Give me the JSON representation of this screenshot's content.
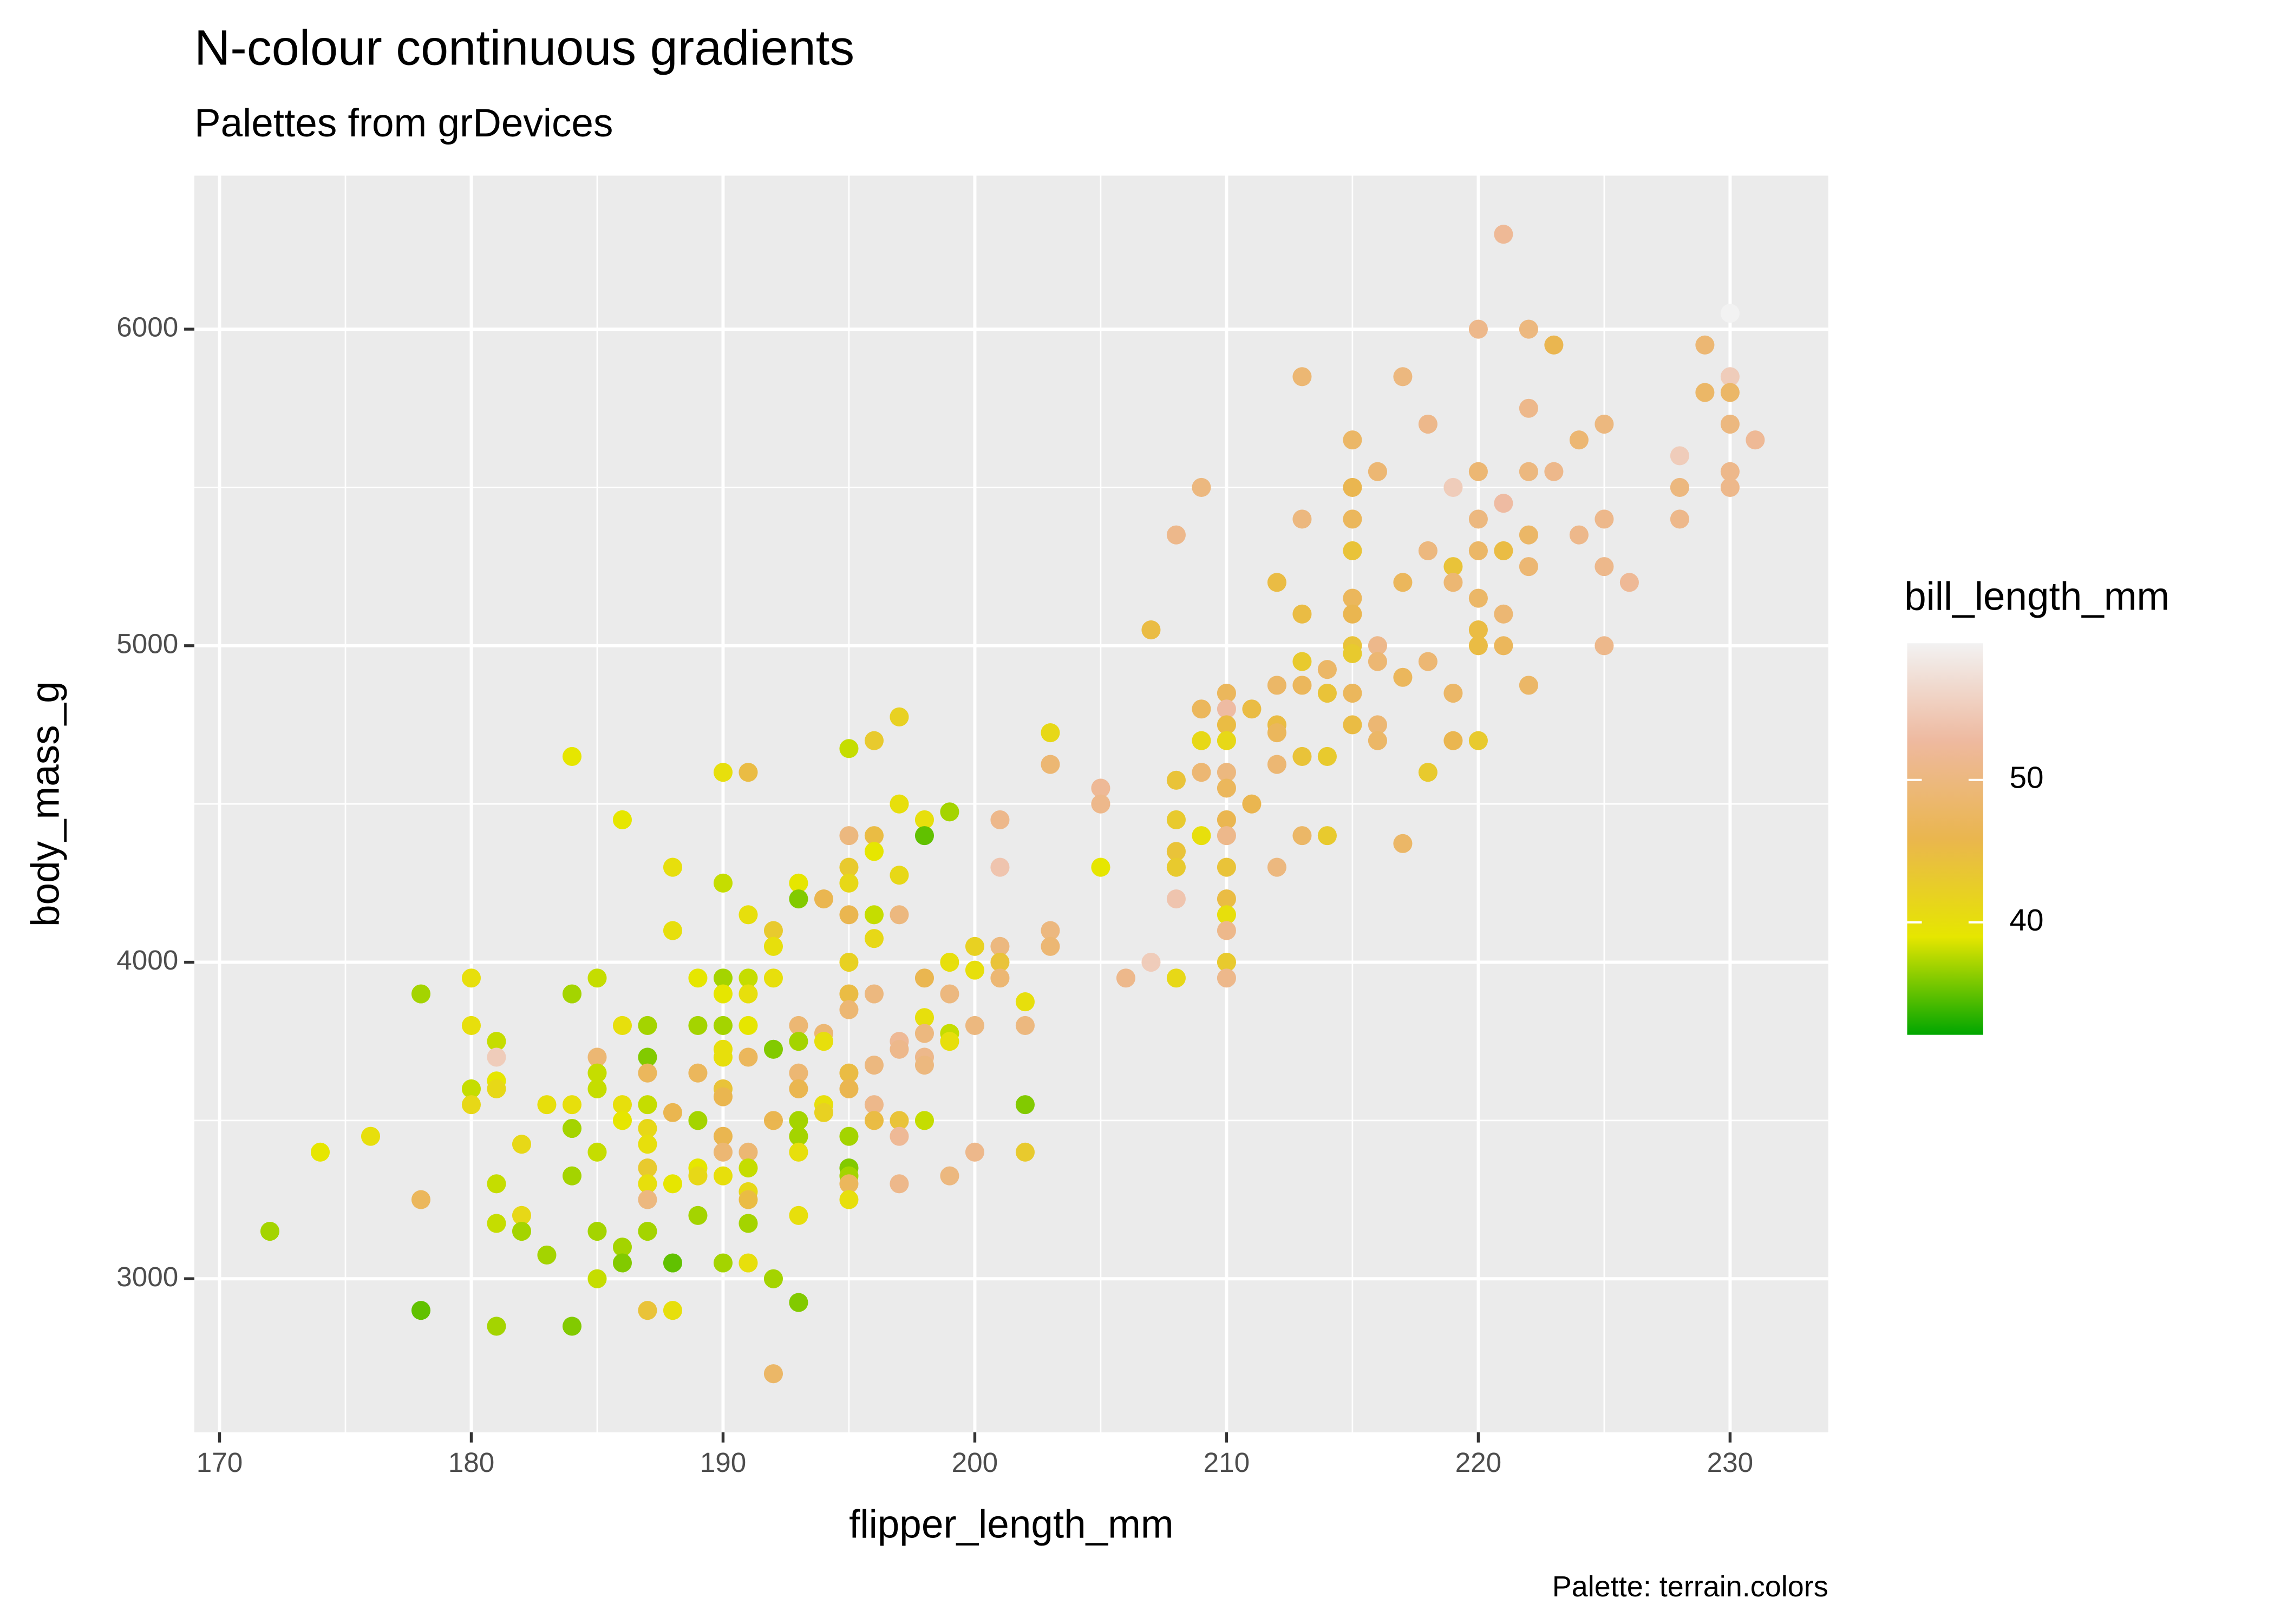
{
  "chart_data": {
    "type": "scatter",
    "title": "N-colour continuous gradients",
    "subtitle": "Palettes from grDevices",
    "caption": "Palette: terrain.colors",
    "xlabel": "flipper_length_mm",
    "ylabel": "body_mass_g",
    "legend_title": "bill_length_mm",
    "xlim": [
      169.0,
      233.9
    ],
    "ylim": [
      2515,
      6485
    ],
    "xticks": [
      170,
      180,
      190,
      200,
      210,
      220,
      230
    ],
    "yticks": [
      3000,
      4000,
      5000,
      6000
    ],
    "xminor": [
      175,
      185,
      195,
      205,
      215,
      225
    ],
    "yminor": [
      3500,
      4500,
      5500
    ],
    "grid": true,
    "clim": [
      32.1,
      59.6
    ],
    "cticks": [
      40,
      50
    ],
    "palette": [
      "#00A600",
      "#E6E600",
      "#EAB64E",
      "#EEB99F",
      "#F2F2F2"
    ],
    "x": [
      172,
      174,
      176,
      178,
      178,
      178,
      180,
      180,
      180,
      180,
      181,
      181,
      181,
      181,
      181,
      181,
      181,
      182,
      182,
      182,
      183,
      183,
      184,
      184,
      184,
      184,
      184,
      184,
      185,
      185,
      185,
      185,
      185,
      185,
      185,
      186,
      186,
      186,
      186,
      186,
      186,
      187,
      187,
      187,
      187,
      187,
      187,
      187,
      187,
      187,
      187,
      187,
      188,
      188,
      188,
      188,
      188,
      188,
      189,
      189,
      189,
      189,
      189,
      189,
      189,
      190,
      190,
      190,
      190,
      190,
      190,
      190,
      190,
      190,
      190,
      190,
      190,
      190,
      191,
      191,
      191,
      191,
      191,
      191,
      191,
      191,
      191,
      191,
      191,
      191,
      192,
      192,
      192,
      192,
      192,
      192,
      192,
      193,
      193,
      193,
      193,
      193,
      193,
      193,
      193,
      193,
      193,
      193,
      194,
      194,
      194,
      194,
      194,
      195,
      195,
      195,
      195,
      195,
      195,
      195,
      195,
      195,
      195,
      195,
      195,
      195,
      195,
      195,
      196,
      196,
      196,
      196,
      196,
      196,
      196,
      196,
      196,
      197,
      197,
      197,
      197,
      197,
      197,
      197,
      197,
      197,
      198,
      198,
      198,
      198,
      198,
      198,
      198,
      198,
      199,
      199,
      199,
      199,
      199,
      199,
      200,
      200,
      200,
      200,
      201,
      201,
      201,
      201,
      201,
      202,
      202,
      202,
      202,
      203,
      203,
      203,
      203,
      205,
      205,
      205,
      206,
      207,
      207,
      208,
      208,
      208,
      208,
      208,
      208,
      208,
      209,
      209,
      209,
      209,
      209,
      210,
      210,
      210,
      210,
      210,
      210,
      210,
      210,
      210,
      210,
      210,
      210,
      210,
      210,
      211,
      211,
      212,
      212,
      212,
      212,
      212,
      212,
      213,
      213,
      213,
      213,
      213,
      213,
      213,
      214,
      214,
      214,
      214,
      215,
      215,
      215,
      215,
      215,
      215,
      215,
      215,
      215,
      215,
      216,
      216,
      216,
      216,
      216,
      217,
      217,
      217,
      217,
      218,
      218,
      218,
      218,
      219,
      219,
      219,
      219,
      219,
      220,
      220,
      220,
      220,
      220,
      220,
      220,
      220,
      221,
      221,
      221,
      221,
      221,
      222,
      222,
      222,
      222,
      222,
      222,
      223,
      223,
      224,
      224,
      225,
      225,
      225,
      225,
      226,
      228,
      228,
      228,
      229,
      229,
      230,
      230,
      230,
      230,
      230,
      230,
      231
    ],
    "values": [
      3150,
      3400,
      3450,
      3900,
      3250,
      2900,
      3950,
      3800,
      3600,
      3550,
      3750,
      3700,
      3625,
      3600,
      3300,
      3175,
      2850,
      3425,
      3200,
      3150,
      3550,
      3075,
      4650,
      3900,
      3550,
      3475,
      3325,
      2850,
      3950,
      3700,
      3650,
      3600,
      3400,
      3150,
      3000,
      4450,
      3800,
      3550,
      3500,
      3100,
      3050,
      3800,
      3700,
      3650,
      3550,
      3475,
      3425,
      3350,
      3300,
      3250,
      3150,
      2900,
      4300,
      4100,
      3525,
      3300,
      3050,
      2900,
      3950,
      3800,
      3650,
      3500,
      3350,
      3325,
      3200,
      4600,
      4250,
      3950,
      3900,
      3800,
      3725,
      3700,
      3600,
      3575,
      3450,
      3400,
      3325,
      3050,
      4600,
      4150,
      3950,
      3900,
      3800,
      3700,
      3400,
      3350,
      3275,
      3250,
      3175,
      3050,
      4100,
      4050,
      3950,
      3725,
      3500,
      3000,
      2700,
      4250,
      4200,
      3800,
      3750,
      3650,
      3600,
      3500,
      3450,
      3400,
      3200,
      2925,
      4200,
      3775,
      3750,
      3550,
      3525,
      4675,
      4400,
      4300,
      4250,
      4150,
      4000,
      3900,
      3850,
      3650,
      3600,
      3450,
      3350,
      3325,
      3300,
      3250,
      4700,
      4400,
      4350,
      4150,
      4075,
      3900,
      3675,
      3550,
      3500,
      4775,
      4500,
      4275,
      4150,
      3750,
      3725,
      3500,
      3450,
      3300,
      4450,
      4400,
      3950,
      3825,
      3775,
      3700,
      3675,
      3500,
      4475,
      4000,
      3900,
      3775,
      3750,
      3325,
      4050,
      3975,
      3800,
      3400,
      4450,
      4300,
      4050,
      4000,
      3950,
      3875,
      3800,
      3550,
      3400,
      4725,
      4625,
      4100,
      4050,
      4550,
      4500,
      4300,
      3950,
      5050,
      4000,
      5350,
      4575,
      4450,
      4350,
      4300,
      4200,
      3950,
      5500,
      4800,
      4700,
      4600,
      4400,
      4850,
      4800,
      4750,
      4700,
      4600,
      4550,
      4450,
      4400,
      4300,
      4200,
      4150,
      4100,
      4000,
      3950,
      4800,
      4500,
      5200,
      4875,
      4750,
      4725,
      4625,
      4300,
      5850,
      5400,
      5100,
      4950,
      4875,
      4650,
      4400,
      4925,
      4850,
      4650,
      4400,
      5650,
      5500,
      5400,
      5300,
      5150,
      5100,
      5000,
      4975,
      4850,
      4750,
      5550,
      5000,
      4950,
      4750,
      4700,
      5850,
      5200,
      4900,
      4375,
      5700,
      5300,
      4950,
      4600,
      5500,
      5250,
      5200,
      4850,
      4700,
      6000,
      5550,
      5400,
      5300,
      5150,
      5050,
      5000,
      4700,
      6300,
      5450,
      5300,
      5100,
      5000,
      6000,
      5750,
      5550,
      5350,
      5250,
      4875,
      5950,
      5550,
      5650,
      5350,
      5700,
      5400,
      5250,
      5000,
      5200,
      5600,
      5500,
      5400,
      5950,
      5800,
      6050,
      5850,
      5800,
      5700,
      5550,
      5500,
      5650
    ],
    "color_values": [
      37,
      39,
      40,
      37,
      47,
      35,
      40,
      40,
      38,
      41,
      38,
      55,
      39,
      41,
      38,
      38,
      37,
      41,
      41,
      37,
      40,
      37,
      39,
      37,
      40,
      37,
      37,
      36,
      38,
      49,
      38,
      38,
      38,
      37,
      38,
      39,
      40,
      40,
      39,
      37,
      36,
      37,
      36,
      47,
      38,
      41,
      40,
      43,
      40,
      50,
      37,
      44,
      40,
      40,
      46,
      39,
      35,
      40,
      39,
      37,
      47,
      37,
      39,
      41,
      37,
      40,
      38,
      37,
      39,
      37,
      40,
      40,
      44,
      46,
      46,
      49,
      40,
      37,
      45,
      40,
      38,
      40,
      39,
      47,
      49,
      38,
      41,
      45,
      37,
      40,
      43,
      40,
      40,
      36,
      46,
      37,
      48,
      39,
      36,
      49,
      37,
      49,
      46,
      37,
      37,
      40,
      40,
      36,
      46,
      49,
      40,
      40,
      42,
      38,
      50,
      43,
      41,
      46,
      42,
      45,
      49,
      45,
      46,
      37,
      36,
      37,
      47,
      40,
      43,
      45,
      39,
      38,
      41,
      50,
      50,
      51,
      45,
      42,
      40,
      41,
      50,
      52,
      51,
      44,
      52,
      51,
      40,
      35,
      46,
      40,
      50,
      51,
      50,
      38,
      37,
      40,
      50,
      38,
      40,
      50,
      42,
      40,
      50,
      51,
      51,
      54,
      50,
      44,
      49,
      40,
      50,
      36,
      43,
      41,
      49,
      50,
      49,
      52,
      51,
      39,
      51,
      45,
      55,
      51,
      44,
      43,
      44,
      43,
      54,
      41,
      50,
      47,
      41,
      49,
      40,
      47,
      53,
      45,
      41,
      50,
      47,
      46,
      51,
      44,
      45,
      40,
      51,
      43,
      51,
      45,
      46,
      45,
      48,
      45,
      47,
      49,
      50,
      49,
      50,
      45,
      43,
      47,
      44,
      48,
      48,
      44,
      43,
      43,
      48,
      46,
      47,
      44,
      47,
      46,
      44,
      43,
      47,
      45,
      49,
      51,
      49,
      49,
      48,
      50,
      47,
      47,
      48,
      51,
      50,
      49,
      43,
      55,
      44,
      49,
      48,
      46,
      51,
      49,
      50,
      48,
      48,
      45,
      45,
      43,
      52,
      53,
      45,
      49,
      47,
      50,
      51,
      50,
      48,
      49,
      48,
      46,
      51,
      49,
      51,
      50,
      51,
      51,
      51,
      52,
      55,
      50,
      51,
      49,
      48,
      59.6,
      55,
      48,
      50,
      51,
      51,
      52
    ]
  }
}
